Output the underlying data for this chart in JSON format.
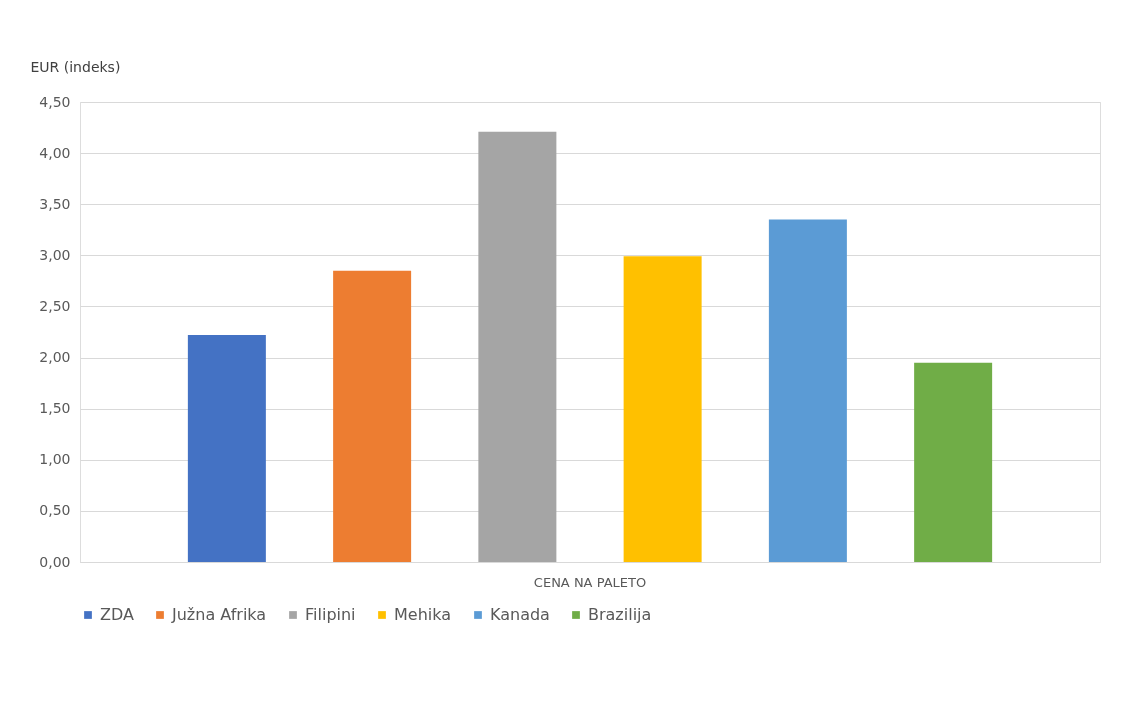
{
  "chart_data": {
    "type": "bar",
    "ylabel": "EUR (indeks)",
    "categories": [
      "CENA NA PALETO"
    ],
    "series": [
      {
        "name": "ZDA",
        "color": "#4472c4",
        "values": [
          2.22
        ]
      },
      {
        "name": "Južna Afrika",
        "color": "#ed7d31",
        "values": [
          2.85
        ]
      },
      {
        "name": "Filipini",
        "color": "#a5a5a5",
        "values": [
          4.21
        ]
      },
      {
        "name": "Mehika",
        "color": "#ffc000",
        "values": [
          2.99
        ]
      },
      {
        "name": "Kanada",
        "color": "#5b9bd5",
        "values": [
          3.35
        ]
      },
      {
        "name": "Brazilija",
        "color": "#70ad47",
        "values": [
          1.95
        ]
      }
    ],
    "ylim": [
      0,
      4.5
    ],
    "yticks": [
      {
        "value": 0,
        "label": "0,00"
      },
      {
        "value": 0.5,
        "label": "0,50"
      },
      {
        "value": 1,
        "label": "1,00"
      },
      {
        "value": 1.5,
        "label": "1,50"
      },
      {
        "value": 2,
        "label": "2,00"
      },
      {
        "value": 2.5,
        "label": "2,50"
      },
      {
        "value": 3,
        "label": "3,00"
      },
      {
        "value": 3.5,
        "label": "3,50"
      },
      {
        "value": 4,
        "label": "4,00"
      },
      {
        "value": 4.5,
        "label": "4,50"
      }
    ],
    "grid": "y",
    "legend": "bottom"
  }
}
